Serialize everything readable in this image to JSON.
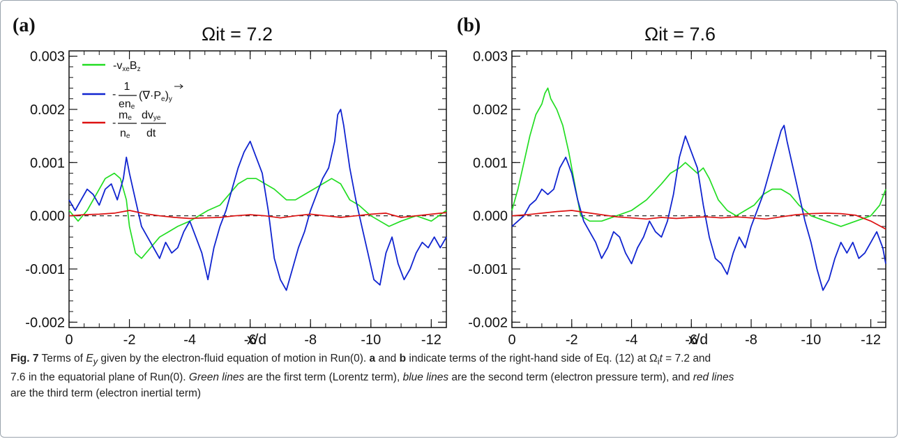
{
  "chart_data": [
    {
      "type": "line",
      "panel_label": "(a)",
      "title": "Ωit = 7.2",
      "xlabel": "x/d",
      "ylabel": "",
      "xlim": [
        0,
        -12.5
      ],
      "ylim": [
        -0.0021,
        0.0031
      ],
      "xticks": [
        "0",
        "-2",
        "-4",
        "-6",
        "-8",
        "-10",
        "-12"
      ],
      "xtick_values": [
        0,
        -2,
        -4,
        -6,
        -8,
        -10,
        -12
      ],
      "yticks": [
        "0.003",
        "0.002",
        "0.001",
        "0.000",
        "-0.001",
        "-0.002"
      ],
      "ytick_values": [
        0.003,
        0.002,
        0.001,
        0.0,
        -0.001,
        -0.002
      ],
      "zero_line": "dashed",
      "legend_placement": "top-left",
      "series": [
        {
          "name": "-vxeBz",
          "color": "#22dd22",
          "x": [
            0,
            -0.3,
            -0.6,
            -0.9,
            -1.2,
            -1.5,
            -1.7,
            -1.9,
            -2.0,
            -2.2,
            -2.4,
            -2.7,
            -3.0,
            -3.3,
            -3.6,
            -4.0,
            -4.3,
            -4.6,
            -5.0,
            -5.3,
            -5.6,
            -5.9,
            -6.2,
            -6.5,
            -6.8,
            -7.0,
            -7.2,
            -7.5,
            -7.8,
            -8.1,
            -8.4,
            -8.7,
            -9.0,
            -9.3,
            -9.6,
            -10.0,
            -10.3,
            -10.6,
            -11.0,
            -11.5,
            -12.0,
            -12.5
          ],
          "y": [
            0.0001,
            -0.0001,
            0.0001,
            0.0004,
            0.0007,
            0.0008,
            0.0007,
            0.0003,
            -0.0002,
            -0.0007,
            -0.0008,
            -0.0006,
            -0.0004,
            -0.0003,
            -0.0002,
            -0.0001,
            0.0,
            0.0001,
            0.0002,
            0.0004,
            0.0006,
            0.0007,
            0.0007,
            0.0006,
            0.0005,
            0.0004,
            0.0003,
            0.0003,
            0.0004,
            0.0005,
            0.0006,
            0.0007,
            0.0006,
            0.0003,
            0.0002,
            0.0,
            -0.0001,
            -0.0002,
            -0.0001,
            0.0,
            -0.0001,
            0.0001
          ]
        },
        {
          "name": "-(1/ene)(∇·Pe)y",
          "color": "#1024d0",
          "x": [
            0,
            -0.2,
            -0.4,
            -0.6,
            -0.8,
            -1.0,
            -1.2,
            -1.4,
            -1.6,
            -1.8,
            -1.9,
            -2.0,
            -2.2,
            -2.4,
            -2.6,
            -2.8,
            -3.0,
            -3.2,
            -3.4,
            -3.6,
            -3.8,
            -4.0,
            -4.2,
            -4.4,
            -4.6,
            -4.8,
            -5.0,
            -5.2,
            -5.4,
            -5.6,
            -5.8,
            -6.0,
            -6.2,
            -6.4,
            -6.6,
            -6.8,
            -7.0,
            -7.2,
            -7.4,
            -7.6,
            -7.8,
            -8.0,
            -8.2,
            -8.4,
            -8.6,
            -8.8,
            -8.9,
            -9.0,
            -9.1,
            -9.3,
            -9.5,
            -9.7,
            -9.9,
            -10.1,
            -10.3,
            -10.5,
            -10.7,
            -10.9,
            -11.1,
            -11.3,
            -11.5,
            -11.7,
            -11.9,
            -12.1,
            -12.3,
            -12.5
          ],
          "y": [
            0.0003,
            0.0001,
            0.0003,
            0.0005,
            0.0004,
            0.0002,
            0.0005,
            0.0006,
            0.0003,
            0.0007,
            0.0011,
            0.0008,
            0.0003,
            -0.0002,
            -0.0004,
            -0.0006,
            -0.0008,
            -0.0005,
            -0.0007,
            -0.0006,
            -0.0003,
            -0.0001,
            -0.0004,
            -0.0007,
            -0.0012,
            -0.0006,
            -0.0002,
            0.0001,
            0.0005,
            0.0009,
            0.0012,
            0.0014,
            0.0011,
            0.0008,
            0.0001,
            -0.0008,
            -0.0012,
            -0.0014,
            -0.001,
            -0.0006,
            -0.0003,
            0.0001,
            0.0004,
            0.0007,
            0.0009,
            0.0014,
            0.0019,
            0.002,
            0.0017,
            0.0009,
            0.0003,
            -0.0002,
            -0.0007,
            -0.0012,
            -0.0013,
            -0.0007,
            -0.0004,
            -0.0009,
            -0.0012,
            -0.001,
            -0.0007,
            -0.0005,
            -0.0006,
            -0.0004,
            -0.0006,
            -0.0004
          ]
        },
        {
          "name": "-(me/ne)(dvye/dt)",
          "color": "#dd1111",
          "x": [
            0,
            -0.5,
            -1.0,
            -1.5,
            -2.0,
            -2.5,
            -3.0,
            -3.5,
            -4.0,
            -4.5,
            -5.0,
            -5.5,
            -6.0,
            -6.5,
            -7.0,
            -7.5,
            -8.0,
            -8.5,
            -9.0,
            -9.5,
            -10.0,
            -10.5,
            -11.0,
            -11.5,
            -12.0,
            -12.5
          ],
          "y": [
            0.0,
            2e-05,
            3e-05,
            5e-05,
            0.0001,
            4e-05,
            0.0,
            -3e-05,
            -5e-05,
            -4e-05,
            -3e-05,
            0.0,
            2e-05,
            0.0,
            -4e-05,
            0.0,
            3e-05,
            0.0,
            -3e-05,
            0.0,
            3e-05,
            5e-05,
            -3e-05,
            0.0,
            3e-05,
            6e-05
          ]
        }
      ]
    },
    {
      "type": "line",
      "panel_label": "(b)",
      "title": "Ωit = 7.6",
      "xlabel": "x/d",
      "ylabel": "",
      "xlim": [
        0,
        -12.5
      ],
      "ylim": [
        -0.0021,
        0.0031
      ],
      "xticks": [
        "0",
        "-2",
        "-4",
        "-6",
        "-8",
        "-10",
        "-12"
      ],
      "xtick_values": [
        0,
        -2,
        -4,
        -6,
        -8,
        -10,
        -12
      ],
      "yticks": [
        "0.003",
        "0.002",
        "0.001",
        "0.000",
        "-0.001",
        "-0.002"
      ],
      "ytick_values": [
        0.003,
        0.002,
        0.001,
        0.0,
        -0.001,
        -0.002
      ],
      "zero_line": "dashed",
      "series": [
        {
          "name": "-vxeBz",
          "color": "#22dd22",
          "x": [
            0,
            -0.2,
            -0.4,
            -0.6,
            -0.8,
            -1.0,
            -1.1,
            -1.2,
            -1.3,
            -1.5,
            -1.7,
            -1.9,
            -2.1,
            -2.3,
            -2.6,
            -3.0,
            -3.5,
            -4.0,
            -4.5,
            -5.0,
            -5.3,
            -5.6,
            -5.8,
            -6.0,
            -6.2,
            -6.4,
            -6.6,
            -6.9,
            -7.2,
            -7.5,
            -7.8,
            -8.1,
            -8.4,
            -8.7,
            -9.0,
            -9.3,
            -9.6,
            -10.0,
            -10.5,
            -11.0,
            -11.5,
            -12.0,
            -12.3,
            -12.5
          ],
          "y": [
            0.0001,
            0.0005,
            0.001,
            0.0015,
            0.0019,
            0.0021,
            0.0023,
            0.0024,
            0.0022,
            0.002,
            0.0017,
            0.0012,
            0.0006,
            0.0,
            -0.0001,
            -0.0001,
            0.0,
            0.0001,
            0.0003,
            0.0006,
            0.0008,
            0.0009,
            0.001,
            0.0009,
            0.0008,
            0.0009,
            0.0007,
            0.0003,
            0.0001,
            0.0,
            0.0001,
            0.0002,
            0.0004,
            0.0005,
            0.0005,
            0.0004,
            0.0002,
            0.0,
            -0.0001,
            -0.0002,
            -0.0001,
            0.0,
            0.0002,
            0.0005
          ]
        },
        {
          "name": "-(1/ene)(∇·Pe)y",
          "color": "#1024d0",
          "x": [
            0,
            -0.2,
            -0.4,
            -0.6,
            -0.8,
            -1.0,
            -1.2,
            -1.4,
            -1.6,
            -1.8,
            -2.0,
            -2.2,
            -2.4,
            -2.6,
            -2.8,
            -3.0,
            -3.2,
            -3.4,
            -3.6,
            -3.8,
            -4.0,
            -4.2,
            -4.4,
            -4.6,
            -4.8,
            -5.0,
            -5.2,
            -5.4,
            -5.6,
            -5.8,
            -6.0,
            -6.2,
            -6.4,
            -6.6,
            -6.8,
            -7.0,
            -7.2,
            -7.4,
            -7.6,
            -7.8,
            -8.0,
            -8.2,
            -8.4,
            -8.6,
            -8.8,
            -9.0,
            -9.1,
            -9.2,
            -9.4,
            -9.6,
            -9.8,
            -10.0,
            -10.2,
            -10.4,
            -10.6,
            -10.8,
            -11.0,
            -11.2,
            -11.4,
            -11.6,
            -11.8,
            -12.0,
            -12.2,
            -12.4,
            -12.5
          ],
          "y": [
            -0.0002,
            -0.0001,
            0.0,
            0.0002,
            0.0003,
            0.0005,
            0.0004,
            0.0005,
            0.0009,
            0.0011,
            0.0008,
            0.0003,
            -0.0001,
            -0.0003,
            -0.0005,
            -0.0008,
            -0.0006,
            -0.0003,
            -0.0004,
            -0.0007,
            -0.0009,
            -0.0006,
            -0.0004,
            -0.0001,
            -0.0003,
            -0.0004,
            -0.0001,
            0.0004,
            0.0011,
            0.0015,
            0.0012,
            0.0009,
            0.0002,
            -0.0004,
            -0.0008,
            -0.0009,
            -0.0011,
            -0.0007,
            -0.0004,
            -0.0006,
            -0.0002,
            0.0001,
            0.0004,
            0.0008,
            0.0012,
            0.0016,
            0.0017,
            0.0014,
            0.0009,
            0.0004,
            -0.0001,
            -0.0005,
            -0.001,
            -0.0014,
            -0.0012,
            -0.0008,
            -0.0005,
            -0.0007,
            -0.0005,
            -0.0008,
            -0.0007,
            -0.0005,
            -0.0003,
            -0.0006,
            -0.0009
          ]
        },
        {
          "name": "-(me/ne)(dvye/dt)",
          "color": "#dd1111",
          "x": [
            0,
            -0.5,
            -1.0,
            -1.5,
            -2.0,
            -2.5,
            -3.0,
            -3.5,
            -4.0,
            -4.5,
            -5.0,
            -5.5,
            -6.0,
            -6.5,
            -7.0,
            -7.5,
            -8.0,
            -8.5,
            -9.0,
            -9.5,
            -10.0,
            -10.5,
            -11.0,
            -11.5,
            -12.0,
            -12.5
          ],
          "y": [
            0.0,
            2e-05,
            5e-05,
            8e-05,
            0.0001,
            6e-05,
            2e-05,
            -2e-05,
            -4e-05,
            -6e-05,
            -3e-05,
            -5e-05,
            -3e-05,
            -2e-05,
            -4e-05,
            -2e-05,
            -4e-05,
            -6e-05,
            -2e-05,
            2e-05,
            4e-05,
            5e-05,
            4e-05,
            1e-05,
            -0.0001,
            -0.00025
          ]
        }
      ]
    }
  ],
  "legend": {
    "items": [
      {
        "color": "#22dd22",
        "main1": "-v",
        "sub1": "xe",
        "main2": "B",
        "sub2": "z"
      },
      {
        "color": "#1024d0",
        "minus": "-",
        "num": "1",
        "den_main": "en",
        "den_sub": "e",
        "tail_a": "(∇·P",
        "tail_sub": "e",
        "tail_b": ")",
        "tail_sub2": "y"
      },
      {
        "color": "#dd1111",
        "minus": "-",
        "num1_main": "m",
        "num1_sub": "e",
        "den1_main": "n",
        "den1_sub": "e",
        "num2_main": "dv",
        "num2_sub": "ye",
        "den2": "dt"
      }
    ]
  },
  "caption": {
    "fig_label": "Fig. 7",
    "line1_a": " Terms of ",
    "ey_main": "E",
    "ey_sub": "y",
    "line1_b": " given by the electron-fluid equation of motion in Run(0). ",
    "a": "a",
    "and": " and ",
    "b": "b",
    "line1_c": " indicate terms of the right-hand side of Eq. (12) at Ω",
    "omega_sub": "i",
    "line1_t": "t",
    "line1_d": " = 7.2 and",
    "line2_a": "7.6 in the equatorial plane of Run(0). ",
    "green": "Green lines",
    "line2_b": " are the first term (Lorentz term), ",
    "blue": "blue lines",
    "line2_c": " are the second term (electron pressure term), and ",
    "red": "red lines",
    "line3_a": "are the third term (electron inertial term)"
  }
}
